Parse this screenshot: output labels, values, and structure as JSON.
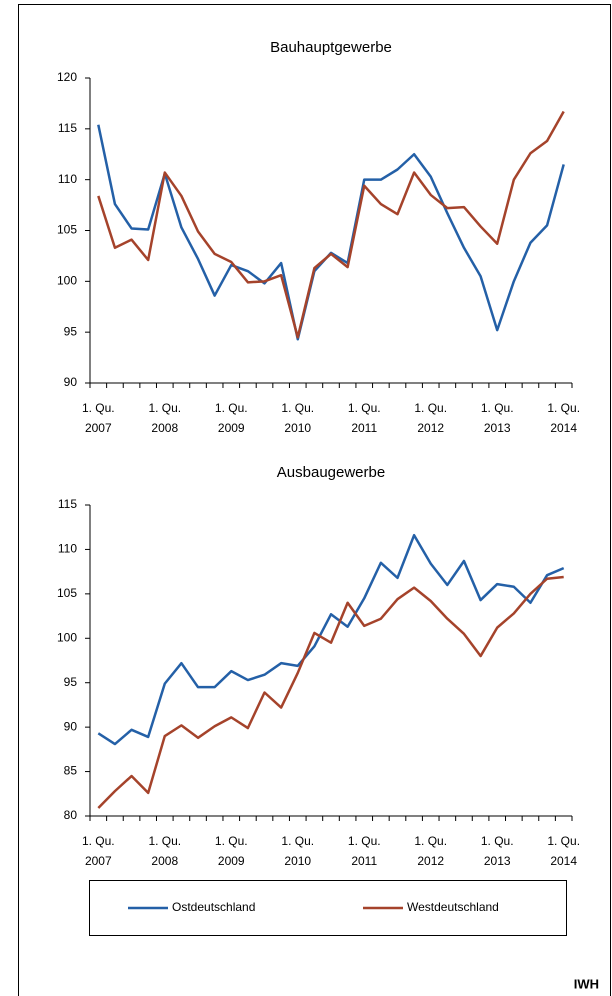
{
  "chart_data": [
    {
      "type": "line",
      "title": "Bauhauptgewerbe",
      "categories": [
        "1. Qu. 2007",
        null,
        null,
        null,
        "1. Qu. 2008",
        null,
        null,
        null,
        "1. Qu. 2009",
        null,
        null,
        null,
        "1. Qu. 2010",
        null,
        null,
        null,
        "1. Qu. 2011",
        null,
        null,
        null,
        "1. Qu. 2012",
        null,
        null,
        null,
        "1. Qu. 2013",
        null,
        null,
        null,
        "1. Qu. 2014"
      ],
      "series": [
        {
          "name": "Ostdeutschland",
          "color": "#2460a7",
          "values": [
            115.4,
            107.6,
            105.2,
            105.1,
            110.6,
            105.3,
            102.2,
            98.6,
            101.6,
            101.0,
            99.8,
            101.8,
            94.3,
            101.0,
            102.8,
            101.8,
            110.0,
            110.0,
            111.0,
            112.5,
            110.3,
            106.7,
            103.3,
            100.5,
            95.2,
            100.0,
            103.8,
            105.5,
            111.5
          ]
        },
        {
          "name": "Westdeutschland",
          "color": "#a5432b",
          "values": [
            108.4,
            103.3,
            104.1,
            102.1,
            110.7,
            108.4,
            104.9,
            102.7,
            101.9,
            99.9,
            100.0,
            100.6,
            94.5,
            101.3,
            102.7,
            101.4,
            109.4,
            107.6,
            106.6,
            110.7,
            108.5,
            107.2,
            107.3,
            105.4,
            103.7,
            110.0,
            112.6,
            113.8,
            116.7
          ]
        }
      ],
      "ylim": [
        90,
        120
      ],
      "yticks": [
        90,
        95,
        100,
        105,
        110,
        115,
        120
      ]
    },
    {
      "type": "line",
      "title": "Ausbaugewerbe",
      "categories": [
        "1. Qu. 2007",
        null,
        null,
        null,
        "1. Qu. 2008",
        null,
        null,
        null,
        "1. Qu. 2009",
        null,
        null,
        null,
        "1. Qu. 2010",
        null,
        null,
        null,
        "1. Qu. 2011",
        null,
        null,
        null,
        "1. Qu. 2012",
        null,
        null,
        null,
        "1. Qu. 2013",
        null,
        null,
        null,
        "1. Qu. 2014"
      ],
      "series": [
        {
          "name": "Ostdeutschland",
          "color": "#2460a7",
          "values": [
            89.3,
            88.1,
            89.7,
            88.9,
            94.9,
            97.2,
            94.5,
            94.5,
            96.3,
            95.3,
            95.9,
            97.2,
            96.9,
            99.1,
            102.7,
            101.3,
            104.5,
            108.5,
            106.8,
            111.6,
            108.4,
            106.0,
            108.7,
            104.3,
            106.1,
            105.8,
            104.0,
            107.1,
            107.9
          ]
        },
        {
          "name": "Westdeutschland",
          "color": "#a5432b",
          "values": [
            80.9,
            82.8,
            84.5,
            82.6,
            89.0,
            90.2,
            88.8,
            90.1,
            91.1,
            89.9,
            93.9,
            92.2,
            96.1,
            100.6,
            99.5,
            104.0,
            101.4,
            102.2,
            104.4,
            105.7,
            104.2,
            102.2,
            100.5,
            98.0,
            101.2,
            102.8,
            105.0,
            106.7,
            106.9
          ]
        }
      ],
      "ylim": [
        80,
        115
      ],
      "yticks": [
        80,
        85,
        90,
        95,
        100,
        105,
        110,
        115
      ]
    }
  ],
  "footer": "IWH"
}
